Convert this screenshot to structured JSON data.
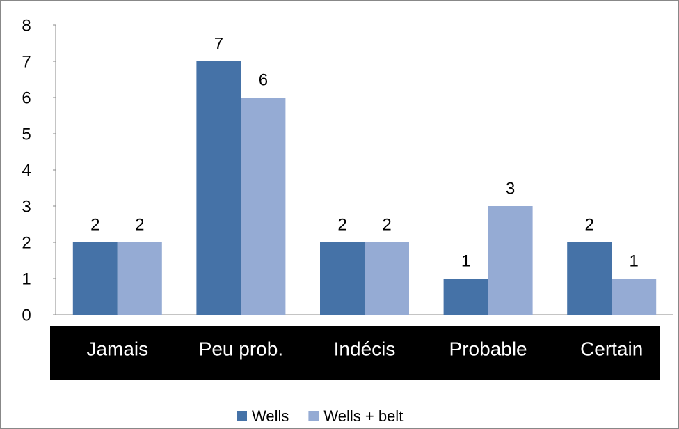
{
  "chart_data": {
    "type": "bar",
    "categories": [
      "Jamais",
      "Peu prob.",
      "Indécis",
      "Probable",
      "Certain"
    ],
    "series": [
      {
        "name": "Wells",
        "color": "#4572a7",
        "values": [
          2,
          7,
          2,
          1,
          2
        ]
      },
      {
        "name": "Wells + belt",
        "color": "#95abd4",
        "values": [
          2,
          6,
          2,
          3,
          1
        ]
      }
    ],
    "ylim": [
      0,
      8
    ],
    "yticks": [
      0,
      1,
      2,
      3,
      4,
      5,
      6,
      7,
      8
    ],
    "grid": false,
    "legend": "bottom"
  }
}
